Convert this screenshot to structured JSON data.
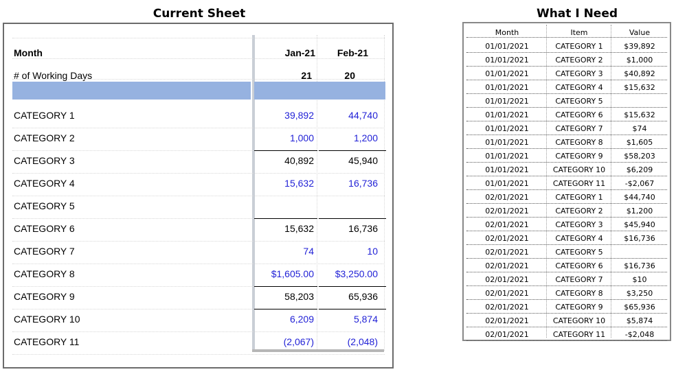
{
  "titles": {
    "left": "Current Sheet",
    "right": "What I Need"
  },
  "current_sheet": {
    "header": {
      "month_label": "Month",
      "col1": "Jan-21",
      "col2": "Feb-21"
    },
    "working_days": {
      "label": "# of Working Days",
      "col1": "21",
      "col2": "20"
    },
    "rows": [
      {
        "label": "CATEGORY 1",
        "jan": "39,892",
        "feb": "44,740"
      },
      {
        "label": "CATEGORY 2",
        "jan": "1,000",
        "feb": "1,200"
      },
      {
        "label": "CATEGORY 3",
        "jan": "40,892",
        "feb": "45,940"
      },
      {
        "label": "CATEGORY 4",
        "jan": "15,632",
        "feb": "16,736"
      },
      {
        "label": "CATEGORY 5",
        "jan": "",
        "feb": ""
      },
      {
        "label": "CATEGORY 6",
        "jan": "15,632",
        "feb": "16,736"
      },
      {
        "label": "CATEGORY 7",
        "jan": "74",
        "feb": "10"
      },
      {
        "label": "CATEGORY 8",
        "jan": "$1,605.00",
        "feb": "$3,250.00"
      },
      {
        "label": "CATEGORY 9",
        "jan": "58,203",
        "feb": "65,936"
      },
      {
        "label": "CATEGORY 10",
        "jan": "6,209",
        "feb": "5,874"
      },
      {
        "label": "CATEGORY 11",
        "jan": "(2,067)",
        "feb": "(2,048)"
      }
    ],
    "colors": {
      "input_text": "#1f1fd6",
      "band": "#96b2e0"
    }
  },
  "what_i_need": {
    "headers": {
      "month": "Month",
      "item": "Item",
      "value": "Value"
    },
    "rows": [
      {
        "month": "01/01/2021",
        "item": "CATEGORY 1",
        "value": "$39,892"
      },
      {
        "month": "01/01/2021",
        "item": "CATEGORY 2",
        "value": "$1,000"
      },
      {
        "month": "01/01/2021",
        "item": "CATEGORY 3",
        "value": "$40,892"
      },
      {
        "month": "01/01/2021",
        "item": "CATEGORY 4",
        "value": "$15,632"
      },
      {
        "month": "01/01/2021",
        "item": "CATEGORY 5",
        "value": ""
      },
      {
        "month": "01/01/2021",
        "item": "CATEGORY 6",
        "value": "$15,632"
      },
      {
        "month": "01/01/2021",
        "item": "CATEGORY 7",
        "value": "$74"
      },
      {
        "month": "01/01/2021",
        "item": "CATEGORY 8",
        "value": "$1,605"
      },
      {
        "month": "01/01/2021",
        "item": "CATEGORY 9",
        "value": "$58,203"
      },
      {
        "month": "01/01/2021",
        "item": "CATEGORY 10",
        "value": "$6,209"
      },
      {
        "month": "01/01/2021",
        "item": "CATEGORY 11",
        "value": "-$2,067"
      },
      {
        "month": "02/01/2021",
        "item": "CATEGORY 1",
        "value": "$44,740"
      },
      {
        "month": "02/01/2021",
        "item": "CATEGORY 2",
        "value": "$1,200"
      },
      {
        "month": "02/01/2021",
        "item": "CATEGORY 3",
        "value": "$45,940"
      },
      {
        "month": "02/01/2021",
        "item": "CATEGORY 4",
        "value": "$16,736"
      },
      {
        "month": "02/01/2021",
        "item": "CATEGORY 5",
        "value": ""
      },
      {
        "month": "02/01/2021",
        "item": "CATEGORY 6",
        "value": "$16,736"
      },
      {
        "month": "02/01/2021",
        "item": "CATEGORY 7",
        "value": "$10"
      },
      {
        "month": "02/01/2021",
        "item": "CATEGORY 8",
        "value": "$3,250"
      },
      {
        "month": "02/01/2021",
        "item": "CATEGORY 9",
        "value": "$65,936"
      },
      {
        "month": "02/01/2021",
        "item": "CATEGORY 10",
        "value": "$5,874"
      },
      {
        "month": "02/01/2021",
        "item": "CATEGORY 11",
        "value": "-$2,048"
      }
    ]
  }
}
